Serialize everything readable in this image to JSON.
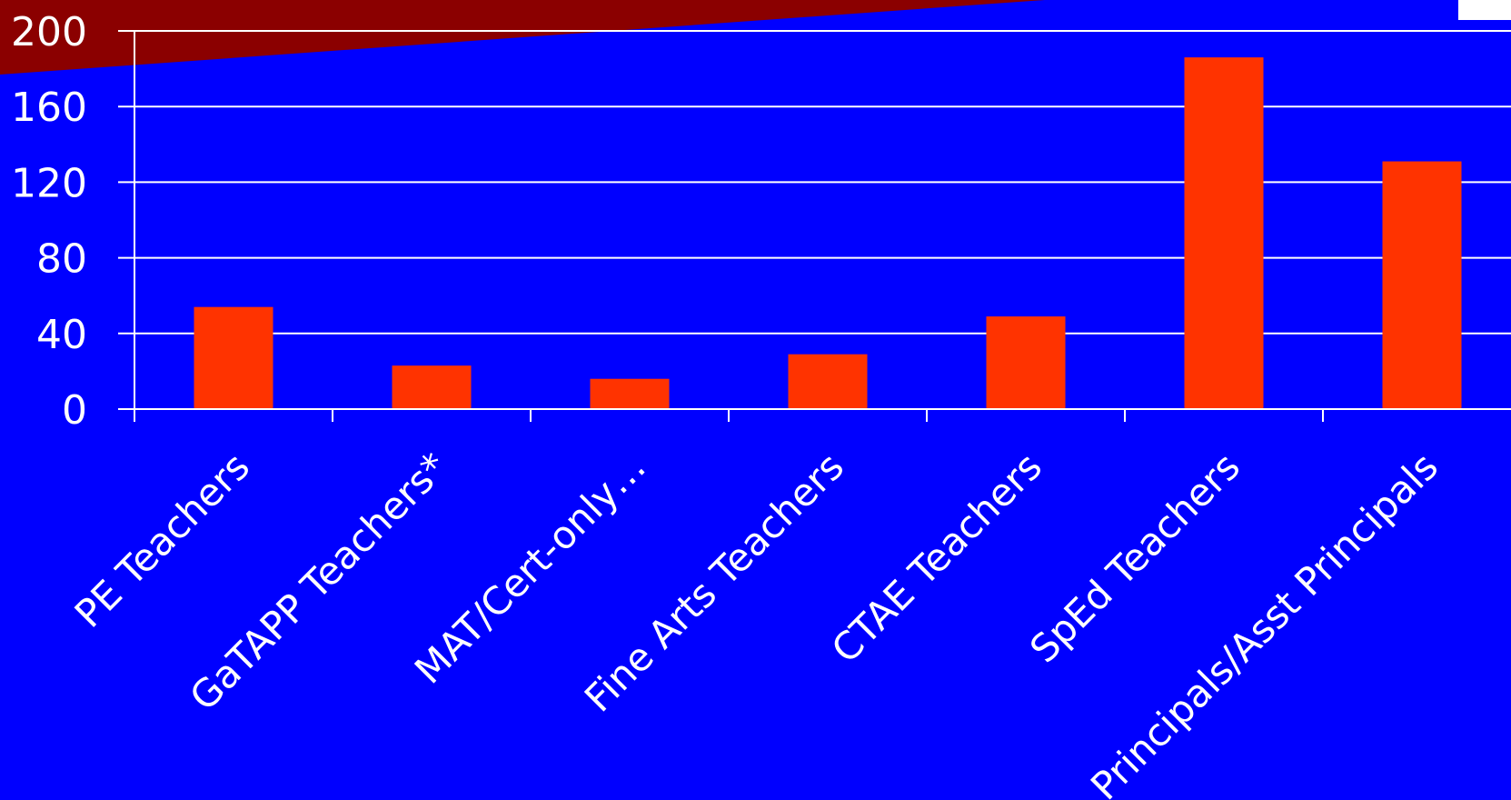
{
  "chart_data": {
    "type": "bar",
    "title": "",
    "xlabel": "",
    "ylabel": "",
    "categories": [
      "PE Teachers",
      "GaTAPP Teachers*",
      "MAT/Cert-only…",
      "Fine Arts Teachers",
      "CTAE Teachers",
      "SpEd Teachers",
      "Principals/Asst Principals"
    ],
    "series": [
      {
        "values": [
          54,
          23,
          16,
          29,
          49,
          186,
          131
        ]
      }
    ],
    "ylim": [
      0,
      200
    ],
    "yticks": [
      0,
      40,
      80,
      120,
      160,
      200
    ],
    "grid": true,
    "legend": "none"
  },
  "colors": {
    "background": "#0000ff",
    "bar": "#ff3300",
    "gridline": "#ffffff",
    "text": "#ffffff",
    "corner_band": "#8b0000"
  }
}
